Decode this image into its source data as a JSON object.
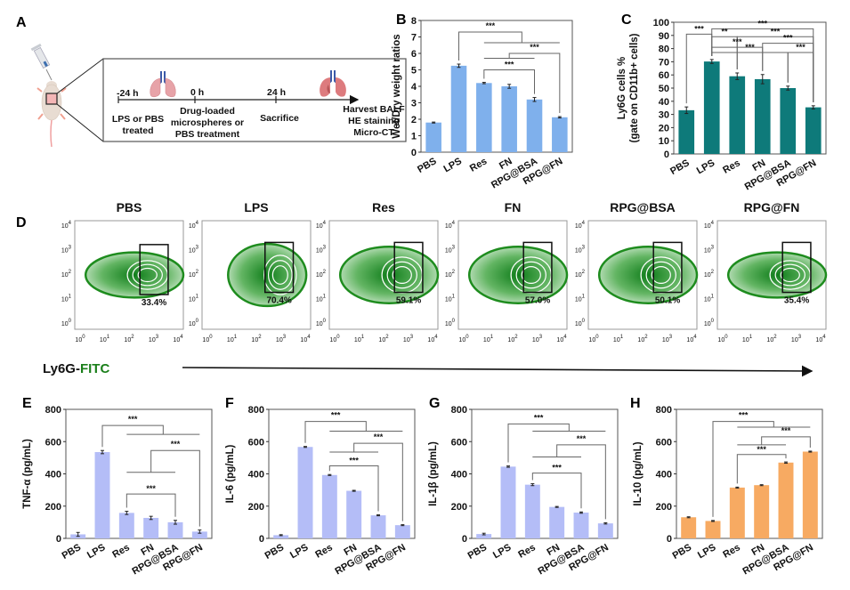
{
  "panel_labels": {
    "A": "A",
    "B": "B",
    "C": "C",
    "D": "D",
    "E": "E",
    "F": "F",
    "G": "G",
    "H": "H"
  },
  "schematic": {
    "timepoints": [
      {
        "time": "-24 h",
        "caption": [
          "LPS or PBS",
          "treated"
        ]
      },
      {
        "time": "0 h",
        "caption": [
          "Drug-loaded",
          "microspheres or",
          "PBS treatment"
        ]
      },
      {
        "time": "24 h",
        "caption": [
          "Sacrifice"
        ]
      }
    ],
    "end_caption": [
      "Harvest BALF",
      "HE staining",
      "Micro-CT"
    ],
    "icons": [
      "syringe-icon",
      "mouse-icon",
      "lung-healthy-icon",
      "lung-injured-icon"
    ]
  },
  "colors": {
    "bar_blue": "#7fb0ec",
    "bar_teal": "#0e7a7a",
    "bar_lavender": "#b4bdf7",
    "bar_orange": "#f7aa62",
    "flow_green": "#1e8c1e",
    "fitc_green": "#1a7f1a"
  },
  "flow": {
    "xaxis_label_prefix": "Ly6G-",
    "xaxis_label_suffix": "FITC",
    "tick_labels": [
      "10^0",
      "10^1",
      "10^2",
      "10^3",
      "10^4"
    ],
    "panels": [
      {
        "title": "PBS",
        "gate_percent": "33.4%"
      },
      {
        "title": "LPS",
        "gate_percent": "70.4%"
      },
      {
        "title": "Res",
        "gate_percent": "59.1%"
      },
      {
        "title": "FN",
        "gate_percent": "57.0%"
      },
      {
        "title": "RPG@BSA",
        "gate_percent": "50.1%"
      },
      {
        "title": "RPG@FN",
        "gate_percent": "35.4%"
      }
    ]
  },
  "chart_data": [
    {
      "id": "B",
      "type": "bar",
      "title": "",
      "categories": [
        "PBS",
        "LPS",
        "Res",
        "FN",
        "RPG@BSA",
        "RPG@FN"
      ],
      "values": [
        1.8,
        5.25,
        4.2,
        4.0,
        3.2,
        2.12
      ],
      "errors": [
        0.03,
        0.1,
        0.04,
        0.12,
        0.12,
        0.04
      ],
      "xlabel": "",
      "ylabel": [
        "Wet/Dry weight ratios"
      ],
      "ylim": [
        0,
        8
      ],
      "yticks": [
        0,
        1,
        2,
        3,
        4,
        5,
        6,
        7,
        8
      ],
      "color_key": "bar_blue",
      "significance": [
        {
          "type": "group",
          "from": [
            1
          ],
          "to": [
            2,
            3,
            4,
            5
          ],
          "label": "***",
          "yA": 7.3,
          "yB": 6.65
        },
        {
          "type": "group",
          "from": [
            2,
            3,
            4
          ],
          "to": [
            5
          ],
          "label": "***",
          "yA": 5.7,
          "yB": 6.0
        },
        {
          "type": "pair",
          "from": 2,
          "to": 4,
          "label": "***",
          "y": 5.0
        }
      ]
    },
    {
      "id": "C",
      "type": "bar",
      "title": "",
      "categories": [
        "PBS",
        "LPS",
        "Res",
        "FN",
        "RPG@BSA",
        "RPG@FN"
      ],
      "values": [
        33.2,
        70.2,
        59.0,
        56.8,
        50.0,
        35.4
      ],
      "errors": [
        2.5,
        1.5,
        2.5,
        3.5,
        1.5,
        1.2
      ],
      "xlabel": "",
      "ylabel": [
        "Ly6G cells %",
        "(gate on CD11b+ cells)"
      ],
      "ylim": [
        0,
        100
      ],
      "yticks": [
        0,
        10,
        20,
        30,
        40,
        50,
        60,
        70,
        80,
        90,
        100
      ],
      "color_key": "bar_teal",
      "significance": [
        {
          "type": "pair",
          "from": 0,
          "to": 1,
          "label": "***",
          "y": 91
        },
        {
          "type": "pair",
          "from": 1,
          "to": 5,
          "label": "***",
          "y": 95
        },
        {
          "type": "pair",
          "from": 1,
          "to": 2,
          "label": "**",
          "y": 89
        },
        {
          "type": "pair",
          "from": 2,
          "to": 5,
          "label": "***",
          "y": 89
        },
        {
          "type": "pair",
          "from": 1,
          "to": 3,
          "label": "***",
          "y": 81
        },
        {
          "type": "pair",
          "from": 3,
          "to": 5,
          "label": "***",
          "y": 84
        },
        {
          "type": "pair",
          "from": 1,
          "to": 4,
          "label": "***",
          "y": 77
        },
        {
          "type": "pair",
          "from": 4,
          "to": 5,
          "label": "***",
          "y": 77
        }
      ]
    },
    {
      "id": "E",
      "type": "bar",
      "title": "",
      "categories": [
        "PBS",
        "LPS",
        "Res",
        "FN",
        "RPG@BSA",
        "RPG@FN"
      ],
      "values": [
        25,
        535,
        158,
        127,
        100,
        42
      ],
      "errors": [
        12,
        10,
        10,
        10,
        12,
        10
      ],
      "xlabel": "",
      "ylabel": [
        "TNF-α (pg/mL)"
      ],
      "ylim": [
        0,
        800
      ],
      "yticks": [
        0,
        200,
        400,
        600,
        800
      ],
      "color_key": "bar_lavender",
      "significance": [
        {
          "type": "group",
          "from": [
            1
          ],
          "to": [
            2,
            3,
            4,
            5
          ],
          "label": "***",
          "yA": 700,
          "yB": 645
        },
        {
          "type": "group",
          "from": [
            2,
            3,
            4
          ],
          "to": [
            5
          ],
          "label": "***",
          "yA": 410,
          "yB": 545
        },
        {
          "type": "pair",
          "from": 2,
          "to": 4,
          "label": "***",
          "y": 275
        }
      ]
    },
    {
      "id": "F",
      "type": "bar",
      "title": "",
      "categories": [
        "PBS",
        "LPS",
        "Res",
        "FN",
        "RPG@BSA",
        "RPG@FN"
      ],
      "values": [
        20,
        567,
        393,
        295,
        143,
        82
      ],
      "errors": [
        3,
        3,
        3,
        3,
        3,
        3
      ],
      "xlabel": "",
      "ylabel": [
        "IL-6 (pg/mL)"
      ],
      "ylim": [
        0,
        800
      ],
      "yticks": [
        0,
        200,
        400,
        600,
        800
      ],
      "color_key": "bar_lavender",
      "significance": [
        {
          "type": "group",
          "from": [
            1
          ],
          "to": [
            2,
            3,
            4,
            5
          ],
          "label": "***",
          "yA": 725,
          "yB": 665
        },
        {
          "type": "group",
          "from": [
            2,
            3,
            4
          ],
          "to": [
            5
          ],
          "label": "***",
          "yA": 535,
          "yB": 590
        },
        {
          "type": "pair",
          "from": 2,
          "to": 4,
          "label": "***",
          "y": 450
        }
      ]
    },
    {
      "id": "G",
      "type": "bar",
      "title": "",
      "categories": [
        "PBS",
        "LPS",
        "Res",
        "FN",
        "RPG@BSA",
        "RPG@FN"
      ],
      "values": [
        27,
        445,
        333,
        195,
        160,
        93
      ],
      "errors": [
        5,
        4,
        6,
        3,
        4,
        4
      ],
      "xlabel": "",
      "ylabel": [
        "IL-1β (pg/mL)"
      ],
      "ylim": [
        0,
        800
      ],
      "yticks": [
        0,
        200,
        400,
        600,
        800
      ],
      "color_key": "bar_lavender",
      "significance": [
        {
          "type": "group",
          "from": [
            1
          ],
          "to": [
            2,
            3,
            4,
            5
          ],
          "label": "***",
          "yA": 710,
          "yB": 665
        },
        {
          "type": "group",
          "from": [
            2,
            3,
            4
          ],
          "to": [
            5
          ],
          "label": "***",
          "yA": 505,
          "yB": 580
        },
        {
          "type": "pair",
          "from": 2,
          "to": 4,
          "label": "***",
          "y": 405
        }
      ]
    },
    {
      "id": "H",
      "type": "bar",
      "title": "",
      "categories": [
        "PBS",
        "LPS",
        "Res",
        "FN",
        "RPG@BSA",
        "RPG@FN"
      ],
      "values": [
        131,
        108,
        315,
        330,
        470,
        538
      ],
      "errors": [
        3,
        3,
        3,
        3,
        4,
        3
      ],
      "xlabel": "",
      "ylabel": [
        "IL-10 (pg/mL)"
      ],
      "ylim": [
        0,
        800
      ],
      "yticks": [
        0,
        200,
        400,
        600,
        800
      ],
      "color_key": "bar_orange",
      "significance": [
        {
          "type": "group",
          "from": [
            1
          ],
          "to": [
            2,
            3,
            4,
            5
          ],
          "label": "***",
          "yA": 725,
          "yB": 690
        },
        {
          "type": "group",
          "from": [
            2,
            3,
            4
          ],
          "to": [
            5
          ],
          "label": "***",
          "yA": 580,
          "yB": 630
        },
        {
          "type": "pair",
          "from": 2,
          "to": 4,
          "label": "***",
          "y": 520
        }
      ]
    }
  ]
}
